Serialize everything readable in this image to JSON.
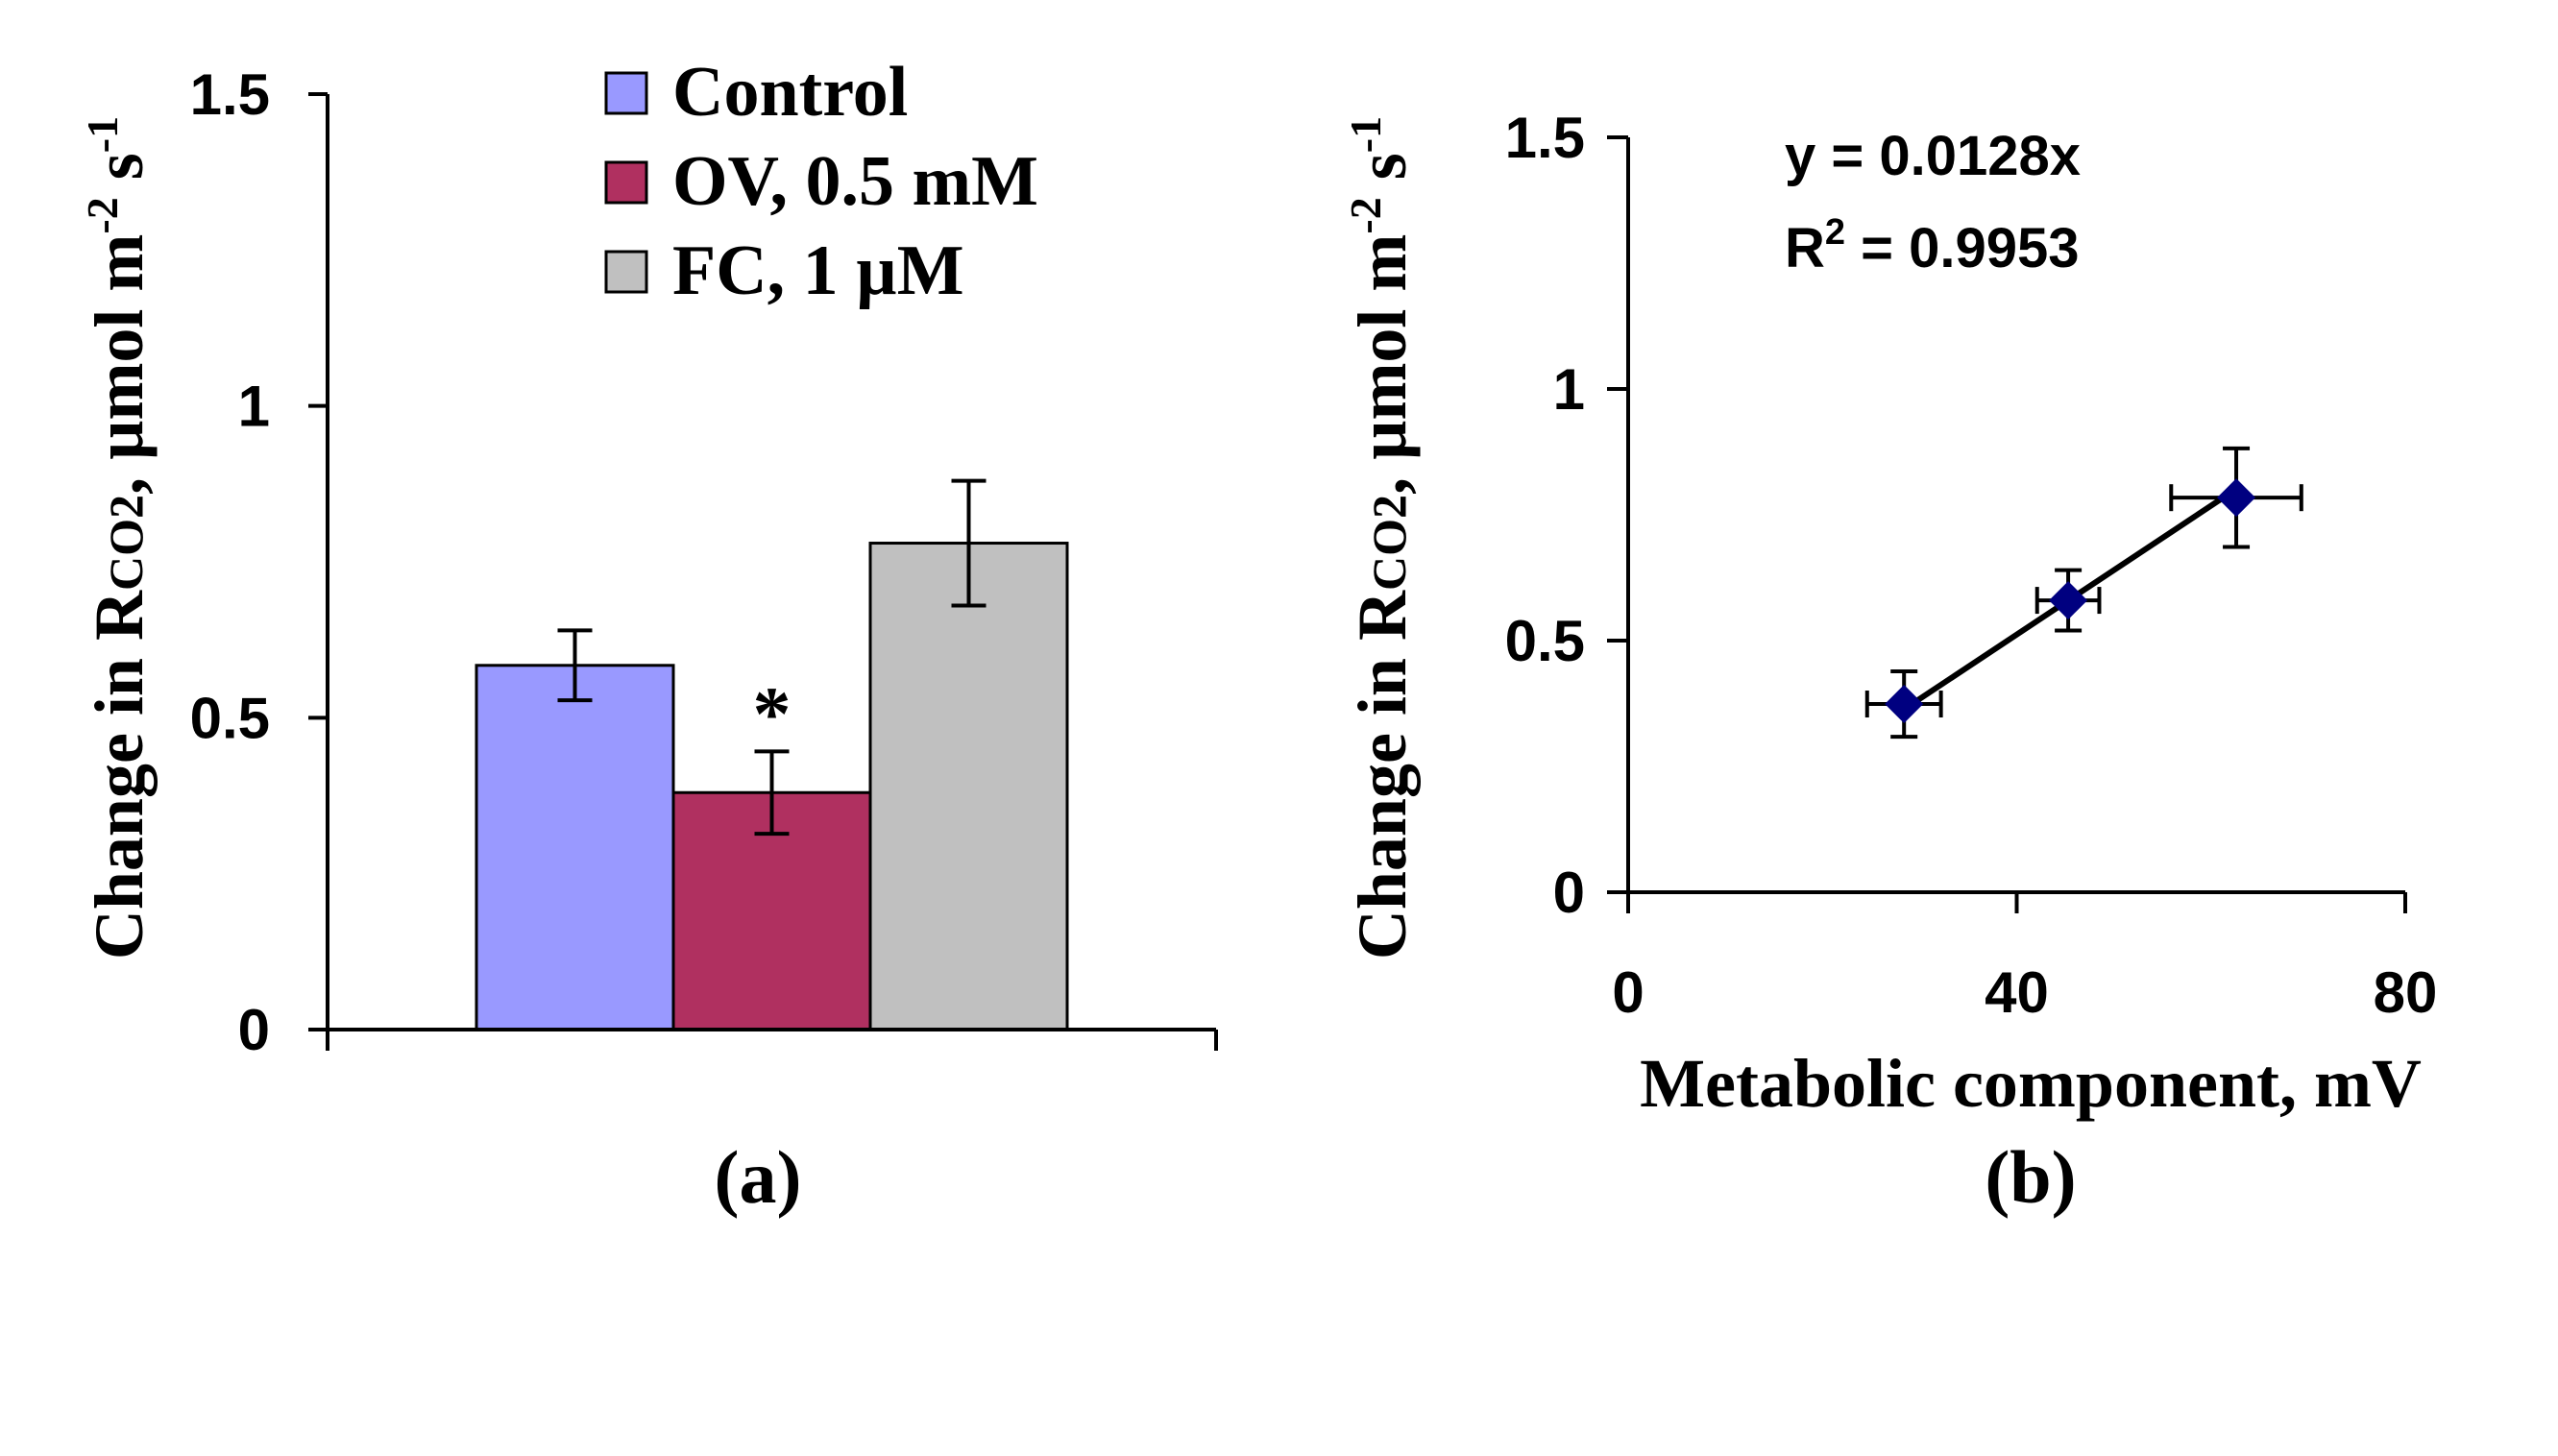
{
  "chart_data": [
    {
      "type": "bar",
      "panel_label": "(a)",
      "ylabel": {
        "main": "Change in R",
        "sub": "CO2",
        "mid": ", µmol m",
        "sup1": "-2",
        "mid2": " s",
        "sup2": "-1"
      },
      "xlabel": "",
      "ylim": [
        0,
        1.5
      ],
      "yticks": [
        "0",
        "0.5",
        "1",
        "1.5"
      ],
      "ytick_values": [
        0,
        0.5,
        1,
        1.5
      ],
      "legend_position": "top",
      "series": [
        {
          "name": "Control",
          "value": 0.584,
          "error": 0.056,
          "color": "#9999ff"
        },
        {
          "name": "OV, 0.5 mM",
          "value": 0.38,
          "error": 0.066,
          "color": "#b03060",
          "annotation": "*"
        },
        {
          "name": "FC, 1 µM",
          "value": 0.78,
          "error": 0.1,
          "color": "#c0c0c0"
        }
      ]
    },
    {
      "type": "scatter",
      "panel_label": "(b)",
      "xlabel": "Metabolic component, mV",
      "ylabel": {
        "main": "Change in R",
        "sub": "CO2",
        "mid": ", µmol m",
        "sup1": "-2",
        "mid2": " s",
        "sup2": "-1"
      },
      "xlim": [
        0,
        80
      ],
      "ylim": [
        0,
        1.5
      ],
      "xticks": [
        "0",
        "40",
        "80"
      ],
      "xtick_values": [
        0,
        40,
        80
      ],
      "yticks": [
        "0",
        "0.5",
        "1",
        "1.5"
      ],
      "ytick_values": [
        0,
        0.5,
        1,
        1.5
      ],
      "marker_color": "#000080",
      "points": [
        {
          "x": 28.4,
          "y": 0.374,
          "xerr": 3.8,
          "yerr": 0.065
        },
        {
          "x": 45.3,
          "y": 0.58,
          "xerr": 3.2,
          "yerr": 0.06
        },
        {
          "x": 62.6,
          "y": 0.784,
          "xerr": 6.7,
          "yerr": 0.098
        }
      ],
      "trendline": {
        "slope": 0.0128,
        "x_range": [
          28.4,
          62.6
        ]
      },
      "equation": "y = 0.0128x",
      "r2_label": "R",
      "r2_sup": "2",
      "r2_value": " = 0.9953"
    }
  ]
}
